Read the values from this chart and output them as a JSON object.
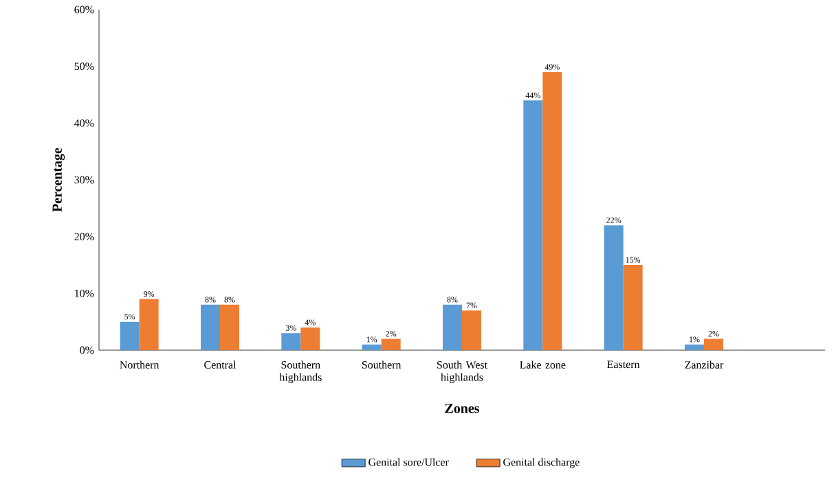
{
  "chart_data": {
    "type": "bar",
    "xlabel": "Zones",
    "ylabel": "Percentage",
    "categories": [
      "Northern",
      "Central",
      "Southern highlands",
      "Southern",
      "South West highlands",
      "Lake zone",
      "Eastern",
      "Zanzibar",
      null
    ],
    "series": [
      {
        "name": "Genital sore/Ulcer",
        "color": "#5b9bd5",
        "values": [
          5,
          8,
          3,
          1,
          8,
          44,
          22,
          1,
          null
        ],
        "value_labels": [
          "5%",
          "8%",
          "3%",
          "1%",
          "8%",
          "44%",
          "22%",
          "1%",
          null
        ]
      },
      {
        "name": "Genital discharge",
        "color": "#ed7d31",
        "values": [
          9,
          8,
          4,
          2,
          7,
          49,
          15,
          2,
          null
        ],
        "value_labels": [
          "9%",
          "8%",
          "4%",
          "2%",
          "7%",
          "49%",
          "15%",
          "2%",
          null
        ]
      }
    ],
    "ylim": [
      0,
      60
    ],
    "yticks": [
      {
        "value": 0,
        "label": "0%"
      },
      {
        "value": 10,
        "label": "10%"
      },
      {
        "value": 20,
        "label": "20%"
      },
      {
        "value": 30,
        "label": "30%"
      },
      {
        "value": 40,
        "label": "40%"
      },
      {
        "value": 50,
        "label": "50%"
      },
      {
        "value": 60,
        "label": "60%"
      }
    ],
    "legend": "bottom",
    "grid": false
  }
}
